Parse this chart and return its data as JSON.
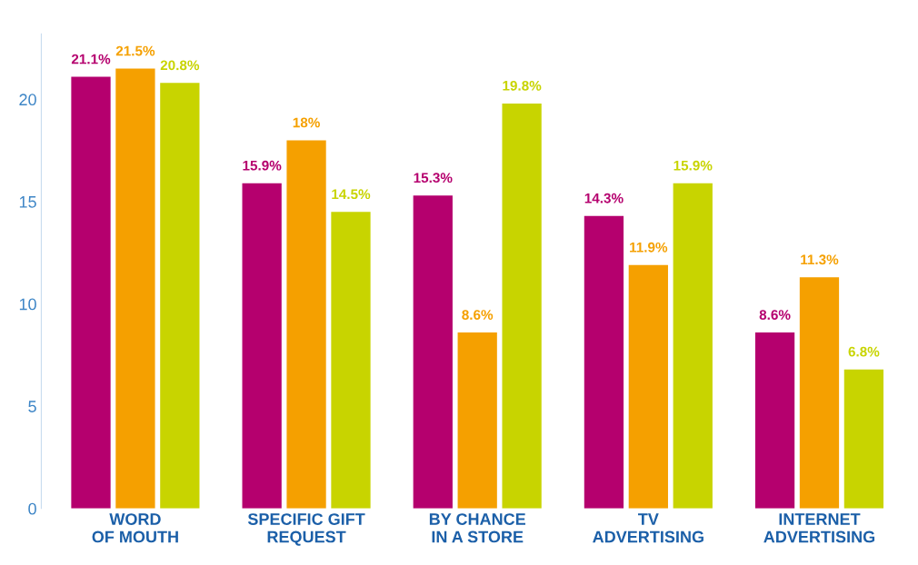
{
  "chart_data": {
    "type": "bar",
    "categories": [
      "WORD\nOF MOUTH",
      "SPECIFIC GIFT\nREQUEST",
      "BY CHANCE\nIN A STORE",
      "TV\nADVERTISING",
      "INTERNET\nADVERTISING"
    ],
    "series": [
      {
        "color": "#b5006e",
        "values": [
          21.1,
          15.9,
          15.3,
          14.3,
          8.6
        ],
        "value_labels": [
          "21.1%",
          "15.9%",
          "15.3%",
          "14.3%",
          "8.6%"
        ]
      },
      {
        "color": "#f5a000",
        "values": [
          21.5,
          18,
          8.6,
          11.9,
          11.3
        ],
        "value_labels": [
          "21.5%",
          "18%",
          "8.6%",
          "11.9%",
          "11.3%"
        ]
      },
      {
        "color": "#c8d400",
        "values": [
          20.8,
          14.5,
          19.8,
          15.9,
          6.8
        ],
        "value_labels": [
          "20.8%",
          "14.5%",
          "19.8%",
          "15.9%",
          "6.8%"
        ]
      }
    ],
    "ylim": [
      0,
      23.2
    ],
    "yticks": [
      0,
      5,
      10,
      15,
      20
    ],
    "grid": false,
    "legend": false
  }
}
